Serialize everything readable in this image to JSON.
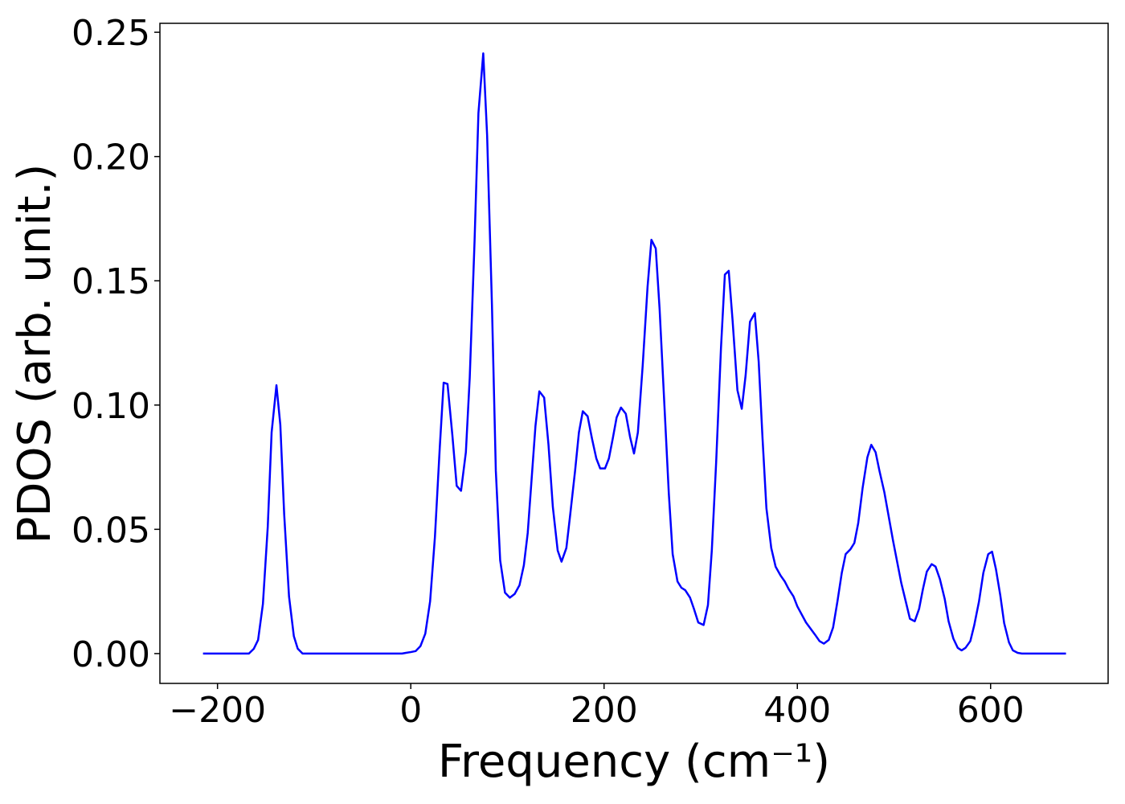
{
  "chart_data": {
    "type": "line",
    "xlabel": "Frequency (cm⁻¹)",
    "ylabel": "PDOS (arb. unit.)",
    "xlim": [
      -259.6,
      721.6
    ],
    "ylim": [
      -0.012,
      0.2536
    ],
    "xticks": [
      {
        "value": -200,
        "label": "−200"
      },
      0,
      200,
      400,
      600
    ],
    "yticks": [
      {
        "value": 0,
        "label": "0.00"
      },
      {
        "value": 0.05,
        "label": "0.05"
      },
      {
        "value": 0.1,
        "label": "0.10"
      },
      {
        "value": 0.15,
        "label": "0.15"
      },
      {
        "value": 0.2,
        "label": "0.20"
      },
      {
        "value": 0.25,
        "label": "0.25"
      }
    ],
    "grid": false,
    "x": [
      -215,
      -167.5,
      -162.5,
      -158,
      -153,
      -148,
      -144,
      -139,
      -135,
      -131,
      -126,
      -121,
      -117,
      -112,
      -9,
      -5,
      0,
      5,
      10,
      15,
      20,
      25,
      30,
      34,
      38,
      43,
      47.5,
      52,
      57,
      61,
      66,
      70,
      75,
      79,
      84,
      88,
      92.5,
      97.5,
      102.5,
      107.5,
      112.5,
      117,
      121,
      125,
      129,
      133,
      138,
      142.5,
      147,
      152,
      156,
      161,
      165,
      170,
      174,
      178,
      183,
      187.5,
      192,
      196,
      201,
      205,
      209,
      213,
      217.5,
      222.5,
      227,
      231,
      235,
      240,
      245,
      249,
      253.5,
      257.5,
      262.5,
      267,
      271,
      276,
      280,
      284,
      289,
      293,
      297.5,
      303,
      307.5,
      311.5,
      316,
      321,
      325,
      329,
      333,
      338,
      342.5,
      346.5,
      351,
      356,
      360,
      364,
      368,
      373,
      377.5,
      382.5,
      387,
      391,
      396,
      400,
      409,
      418.5,
      423,
      427.5,
      432.5,
      437,
      441.5,
      446,
      450,
      455,
      459,
      463,
      467.5,
      472.5,
      476.5,
      481,
      485,
      490,
      499,
      507.5,
      512.5,
      516.5,
      521.5,
      526,
      530,
      534,
      539,
      543,
      547.5,
      552.5,
      556.5,
      561.5,
      566,
      570,
      574,
      579,
      583,
      588,
      592.5,
      597.5,
      601.5,
      605.5,
      610,
      614,
      619,
      623,
      628,
      632.5,
      678
    ],
    "series": [
      {
        "color": "#0000ff",
        "values": [
          0,
          0,
          0.0019,
          0.0055,
          0.02,
          0.051,
          0.089,
          0.108,
          0.092,
          0.056,
          0.023,
          0.007,
          0.002,
          0,
          0,
          0.0003,
          0.0006,
          0.001,
          0.003,
          0.008,
          0.021,
          0.047,
          0.083,
          0.109,
          0.1085,
          0.088,
          0.0675,
          0.0655,
          0.081,
          0.111,
          0.166,
          0.2175,
          0.2415,
          0.2085,
          0.14,
          0.0735,
          0.0375,
          0.0245,
          0.0225,
          0.024,
          0.0275,
          0.0355,
          0.0485,
          0.07,
          0.0915,
          0.1055,
          0.103,
          0.084,
          0.059,
          0.0415,
          0.037,
          0.0425,
          0.056,
          0.0735,
          0.089,
          0.0975,
          0.0955,
          0.0865,
          0.0785,
          0.0745,
          0.0745,
          0.0785,
          0.0865,
          0.095,
          0.099,
          0.0965,
          0.087,
          0.0805,
          0.089,
          0.116,
          0.1475,
          0.1665,
          0.163,
          0.1385,
          0.0995,
          0.0645,
          0.04,
          0.029,
          0.0265,
          0.0255,
          0.0225,
          0.018,
          0.0125,
          0.0115,
          0.0195,
          0.0415,
          0.077,
          0.123,
          0.1525,
          0.154,
          0.134,
          0.106,
          0.0985,
          0.112,
          0.1335,
          0.137,
          0.1175,
          0.0865,
          0.0585,
          0.0425,
          0.035,
          0.0315,
          0.029,
          0.026,
          0.023,
          0.019,
          0.0125,
          0.0075,
          0.005,
          0.004,
          0.0055,
          0.0105,
          0.021,
          0.0325,
          0.04,
          0.042,
          0.0445,
          0.0525,
          0.0665,
          0.079,
          0.084,
          0.081,
          0.0735,
          0.065,
          0.0455,
          0.0285,
          0.0205,
          0.014,
          0.013,
          0.018,
          0.026,
          0.033,
          0.036,
          0.035,
          0.03,
          0.022,
          0.013,
          0.006,
          0.0023,
          0.0013,
          0.0023,
          0.005,
          0.0113,
          0.021,
          0.0325,
          0.04,
          0.041,
          0.034,
          0.0235,
          0.0123,
          0.0045,
          0.0013,
          0.0003,
          0,
          0
        ]
      }
    ]
  }
}
